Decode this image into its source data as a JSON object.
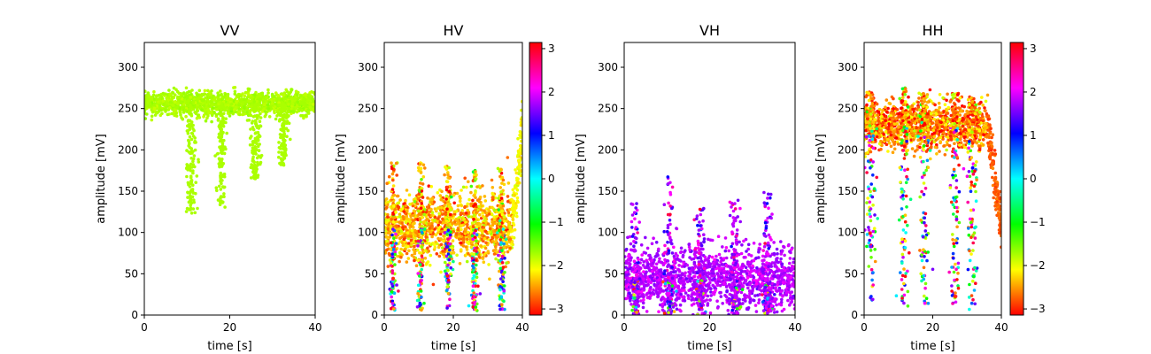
{
  "chart_data": [
    {
      "type": "scatter",
      "title": "VV",
      "xlabel": "time [s]",
      "ylabel": "amplitude [mV]",
      "xlim": [
        0,
        40
      ],
      "ylim": [
        0,
        330
      ],
      "xticks": [
        "0",
        "20",
        "40"
      ],
      "yticks": [
        "0",
        "50",
        "100",
        "150",
        "200",
        "250",
        "300"
      ],
      "colorbar": false,
      "base": {
        "level": 256,
        "spread": 7,
        "color_phase": -1.75,
        "phase_spread": 0.05
      },
      "dips": [
        {
          "t": 11,
          "width": 1.2,
          "min": 120
        },
        {
          "t": 18,
          "width": 1.0,
          "min": 130
        },
        {
          "t": 26,
          "width": 1.2,
          "min": 165
        },
        {
          "t": 32.5,
          "width": 1.0,
          "min": 180
        }
      ]
    },
    {
      "type": "scatter",
      "title": "HV",
      "xlabel": "time [s]",
      "ylabel": "amplitude [mV]",
      "xlim": [
        0,
        40
      ],
      "ylim": [
        0,
        330
      ],
      "xticks": [
        "0",
        "20",
        "40"
      ],
      "yticks": [
        "0",
        "50",
        "100",
        "150",
        "200",
        "250",
        "300"
      ],
      "colorbar": true,
      "colorbar_ticks": [
        "3",
        "2",
        "1",
        "0",
        "−1",
        "−2",
        "−3"
      ],
      "base": {
        "level": 105,
        "spread": 20,
        "color_phase": -2.4,
        "phase_spread": 0.3
      },
      "end_rise": {
        "t_start": 37,
        "t_end": 40,
        "level": 225
      },
      "dips": [
        {
          "t": 2.5,
          "width": 1.0,
          "min": 5,
          "peak": 185
        },
        {
          "t": 10.5,
          "width": 1.0,
          "min": 5,
          "peak": 190
        },
        {
          "t": 18.5,
          "width": 1.0,
          "min": 5,
          "peak": 180
        },
        {
          "t": 26,
          "width": 1.0,
          "min": 5,
          "peak": 175
        },
        {
          "t": 34,
          "width": 1.0,
          "min": 5,
          "peak": 180
        }
      ]
    },
    {
      "type": "scatter",
      "title": "VH",
      "xlabel": "time [s]",
      "ylabel": "amplitude [mV]",
      "xlim": [
        0,
        40
      ],
      "ylim": [
        0,
        330
      ],
      "xticks": [
        "0",
        "20",
        "40"
      ],
      "yticks": [
        "0",
        "50",
        "100",
        "150",
        "200",
        "250",
        "300"
      ],
      "colorbar": false,
      "base": {
        "level": 45,
        "spread": 18,
        "color_phase": 1.8,
        "phase_spread": 0.15
      },
      "dips": [
        {
          "t": 2.5,
          "width": 1.2,
          "min": 0,
          "peak": 140
        },
        {
          "t": 10.5,
          "width": 1.2,
          "min": 0,
          "peak": 170
        },
        {
          "t": 18,
          "width": 1.2,
          "min": 0,
          "peak": 130
        },
        {
          "t": 26,
          "width": 1.2,
          "min": 0,
          "peak": 140
        },
        {
          "t": 33.5,
          "width": 1.2,
          "min": 0,
          "peak": 150
        }
      ]
    },
    {
      "type": "scatter",
      "title": "HH",
      "xlabel": "time [s]",
      "ylabel": "amplitude [mV]",
      "xlim": [
        0,
        40
      ],
      "ylim": [
        0,
        330
      ],
      "xticks": [
        "0",
        "20",
        "40"
      ],
      "yticks": [
        "0",
        "50",
        "100",
        "150",
        "200",
        "250",
        "300"
      ],
      "colorbar": true,
      "colorbar_ticks": [
        "3",
        "2",
        "1",
        "0",
        "−1",
        "−2",
        "−3"
      ],
      "base": {
        "level": 228,
        "spread": 14,
        "color_phase": -2.6,
        "phase_spread": 0.35
      },
      "end_drop": {
        "t_start": 36,
        "t_end": 40,
        "level": 110
      },
      "dips": [
        {
          "t": 2,
          "width": 1.4,
          "min": 5,
          "peak": 270
        },
        {
          "t": 11.5,
          "width": 1.4,
          "min": 10,
          "peak": 275
        },
        {
          "t": 17.5,
          "width": 1.4,
          "min": 10,
          "peak": 270
        },
        {
          "t": 26.5,
          "width": 1.4,
          "min": 10,
          "peak": 270
        },
        {
          "t": 31.5,
          "width": 1.4,
          "min": 5,
          "peak": 265
        }
      ]
    }
  ]
}
